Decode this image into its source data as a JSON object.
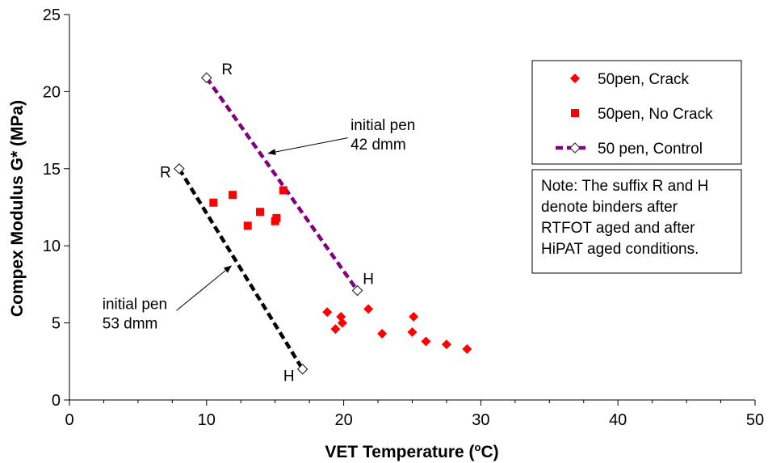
{
  "chart_data": {
    "type": "scatter",
    "xlabel": "VET Temperature (",
    "xlabel_sup": "o",
    "xlabel_tail": "C)",
    "ylabel": "Compex Modulus G* (MPa)",
    "xlim": [
      0,
      50
    ],
    "ylim": [
      0,
      25
    ],
    "xticks": [
      0,
      10,
      20,
      30,
      40,
      50
    ],
    "yticks": [
      0,
      5,
      10,
      15,
      20,
      25
    ],
    "grid": false,
    "legend_position": "top-right",
    "series": [
      {
        "name": "50pen, Crack",
        "marker": "diamond",
        "color": "#ff0000",
        "points": [
          [
            18.8,
            5.7
          ],
          [
            19.4,
            4.6
          ],
          [
            19.8,
            5.4
          ],
          [
            19.9,
            5.0
          ],
          [
            21.8,
            5.9
          ],
          [
            22.8,
            4.3
          ],
          [
            25.0,
            4.4
          ],
          [
            25.1,
            5.4
          ],
          [
            26.0,
            3.8
          ],
          [
            27.5,
            3.6
          ],
          [
            29.0,
            3.3
          ]
        ]
      },
      {
        "name": "50pen, No Crack",
        "marker": "square",
        "color": "#ff0000",
        "points": [
          [
            10.5,
            12.8
          ],
          [
            11.9,
            13.3
          ],
          [
            13.0,
            11.3
          ],
          [
            13.9,
            12.2
          ],
          [
            15.0,
            11.6
          ],
          [
            15.1,
            11.8
          ],
          [
            15.6,
            13.6
          ]
        ]
      },
      {
        "name": "50 pen, Control",
        "marker": "open-diamond",
        "color": "#800080",
        "line_style": "dashed",
        "points": [
          [
            10.0,
            20.9
          ],
          [
            21.0,
            7.1
          ]
        ]
      },
      {
        "name": "",
        "marker": "open-diamond",
        "color": "#000000",
        "line_style": "dashed",
        "points": [
          [
            8.0,
            15.0
          ],
          [
            17.0,
            2.0
          ]
        ]
      }
    ],
    "point_labels": [
      {
        "text": "R",
        "x": 11.5,
        "y": 21.5
      },
      {
        "text": "H",
        "x": 21.8,
        "y": 7.9
      },
      {
        "text": "R",
        "x": 7.0,
        "y": 14.8
      },
      {
        "text": "H",
        "x": 16.0,
        "y": 1.6
      }
    ],
    "annotations": [
      {
        "lines": [
          "initial pen",
          "42 dmm"
        ],
        "text_x": 20.5,
        "text_y": 17.5,
        "arrow_from": [
          20.3,
          17.0
        ],
        "arrow_to": [
          14.5,
          16.0
        ]
      },
      {
        "lines": [
          "initial pen",
          "53 dmm"
        ],
        "text_x": 2.4,
        "text_y": 5.9,
        "arrow_from": [
          7.8,
          5.8
        ],
        "arrow_to": [
          11.8,
          8.7
        ]
      }
    ],
    "note": [
      "Note: The suffix R and H",
      "denote binders after",
      "RTFOT aged and after",
      "HiPAT aged conditions."
    ]
  }
}
